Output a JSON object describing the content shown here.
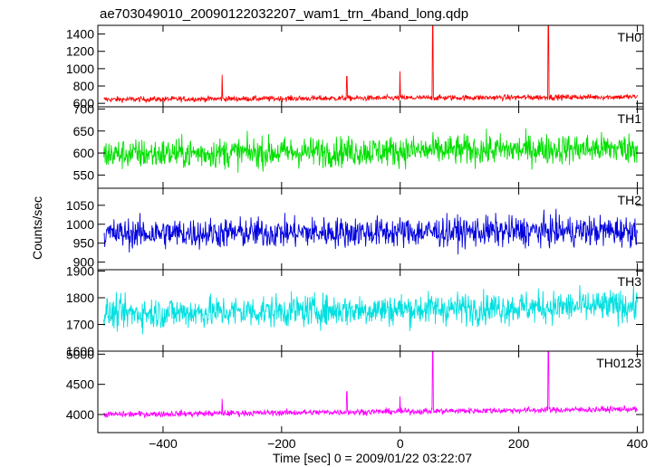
{
  "chart_data": {
    "type": "line",
    "title": "ae703049010_20090122032207_wam1_trn_4band_long.qdp",
    "xlabel": "Time [sec] 0 = 2009/01/22 03:22:07",
    "ylabel": "Counts/sec",
    "xlim": [
      -510,
      410
    ],
    "xticks": [
      -400,
      -200,
      0,
      200,
      400
    ],
    "xtick_labels": [
      "−400",
      "−200",
      "0",
      "200",
      "400"
    ],
    "grid": false,
    "panels": [
      {
        "name": "TH0",
        "color": "#ff0000",
        "ylim": [
          560,
          1500
        ],
        "yticks": [
          600,
          800,
          1000,
          1200,
          1400
        ],
        "yticklabels": [
          "600",
          "800",
          "1000",
          "1200",
          "1400"
        ],
        "baseline": 645,
        "noise": 22,
        "trend": 30,
        "spikes": [
          {
            "x": -300,
            "y": 930
          },
          {
            "x": -90,
            "y": 910
          },
          {
            "x": 0,
            "y": 970
          },
          {
            "x": 55,
            "y": 1490
          },
          {
            "x": 250,
            "y": 1490
          }
        ]
      },
      {
        "name": "TH1",
        "color": "#00e000",
        "ylim": [
          520,
          705
        ],
        "yticks": [
          550,
          600,
          650,
          700
        ],
        "yticklabels": [
          "550",
          "600",
          "650",
          "700"
        ],
        "baseline": 597,
        "noise": 24,
        "trend": 14,
        "spikes": []
      },
      {
        "name": "TH2",
        "color": "#0000dd",
        "ylim": [
          880,
          1095
        ],
        "yticks": [
          900,
          950,
          1000,
          1050
        ],
        "yticklabels": [
          "900",
          "950",
          "1000",
          "1050"
        ],
        "baseline": 975,
        "noise": 28,
        "trend": 8,
        "spikes": []
      },
      {
        "name": "TH3",
        "color": "#00e0e0",
        "ylim": [
          1600,
          1905
        ],
        "yticks": [
          1600,
          1700,
          1800,
          1900
        ],
        "yticklabels": [
          "1600",
          "1700",
          "1800",
          "1900"
        ],
        "baseline": 1740,
        "noise": 42,
        "trend": 30,
        "spikes": []
      },
      {
        "name": "TH0123",
        "color": "#ff00ff",
        "ylim": [
          3700,
          5050
        ],
        "yticks": [
          4000,
          4500,
          5000
        ],
        "yticklabels": [
          "4000",
          "4500",
          "5000"
        ],
        "baseline": 4000,
        "noise": 35,
        "trend": 90,
        "spikes": [
          {
            "x": -300,
            "y": 4260
          },
          {
            "x": -90,
            "y": 4380
          },
          {
            "x": 0,
            "y": 4300
          },
          {
            "x": 55,
            "y": 5050
          },
          {
            "x": 250,
            "y": 5050
          }
        ]
      }
    ]
  }
}
